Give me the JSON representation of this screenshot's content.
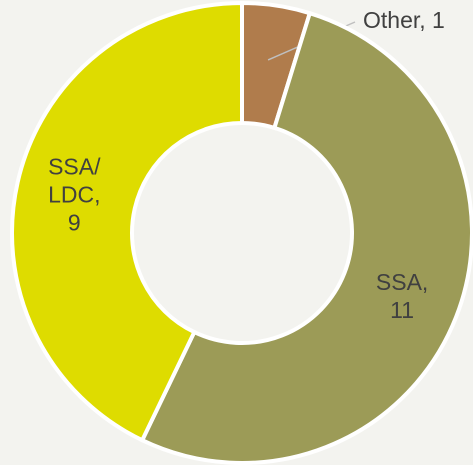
{
  "chart_data": {
    "type": "donut",
    "values": [
      1,
      11,
      9
    ],
    "value_labels": [
      "Other, 1",
      "SSA,\n11",
      "SSA/\nLDC,\n9"
    ],
    "colors": [
      "#b07c4c",
      "#9c9b57",
      "#dedc00"
    ]
  }
}
